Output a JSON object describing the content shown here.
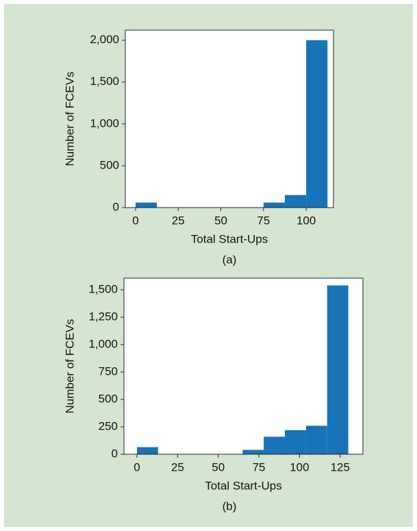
{
  "chart_data": [
    {
      "type": "histogram",
      "xlabel": "Total Start-Ups",
      "ylabel": "Number of FCEVs",
      "caption": "(a)",
      "color": "#1873b9",
      "bins": [
        0,
        12.5,
        25,
        37.5,
        50,
        62.5,
        75,
        87.5,
        100,
        112.5
      ],
      "values": [
        60,
        0,
        0,
        0,
        0,
        0,
        60,
        150,
        2000
      ],
      "xlim": [
        -6,
        116
      ],
      "ylim": [
        0,
        2120
      ],
      "xticks": [
        0,
        25,
        50,
        75,
        100
      ],
      "yticks": [
        0,
        500,
        {
          "value": 1000,
          "label": "1,000"
        },
        {
          "value": 1500,
          "label": "1,500"
        },
        {
          "value": 2000,
          "label": "2,000"
        }
      ]
    },
    {
      "type": "histogram",
      "xlabel": "Total Start-Ups",
      "ylabel": "Number of FCEVs",
      "caption": "(b)",
      "color": "#1873b9",
      "bins": [
        0,
        13,
        26,
        39,
        52,
        65,
        78,
        91,
        104,
        117,
        130
      ],
      "values": [
        65,
        0,
        0,
        0,
        0,
        40,
        160,
        220,
        260,
        1540
      ],
      "xlim": [
        -8,
        139
      ],
      "ylim": [
        0,
        1606
      ],
      "xticks": [
        0,
        25,
        50,
        75,
        100,
        125
      ],
      "yticks": [
        0,
        250,
        500,
        750,
        {
          "value": 1000,
          "label": "1,000"
        },
        {
          "value": 1250,
          "label": "1,250"
        },
        {
          "value": 1500,
          "label": "1,500"
        }
      ]
    }
  ]
}
